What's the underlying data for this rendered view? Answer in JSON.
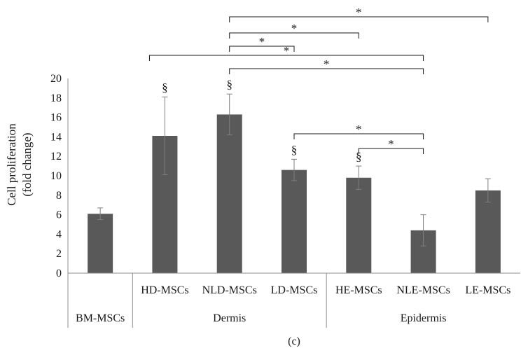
{
  "chart_data": {
    "type": "bar",
    "ylabel": "Cell proliferation (fold change)",
    "ylabel_lines": [
      "Cell proliferation",
      "(fold change)"
    ],
    "ylim": [
      0,
      20
    ],
    "yticks": [
      0,
      2,
      4,
      6,
      8,
      10,
      12,
      14,
      16,
      18,
      20
    ],
    "grid": false,
    "bar_color": "#595959",
    "categories": [
      "BM-MSCs",
      "HD-MSCs",
      "NLD-MSCs",
      "LD-MSCs",
      "HE-MSCs",
      "NLE-MSCs",
      "LE-MSCs"
    ],
    "values": [
      6.1,
      14.1,
      16.3,
      10.6,
      9.8,
      4.4,
      8.5
    ],
    "errors": [
      0.6,
      4.0,
      2.1,
      1.1,
      1.2,
      1.6,
      1.2
    ],
    "significance_marks": [
      "",
      "§",
      "§",
      "§",
      "§",
      "",
      ""
    ],
    "groups": [
      {
        "label": "BM-MSCs",
        "categories": [
          "BM-MSCs"
        ]
      },
      {
        "label": "Dermis",
        "categories": [
          "HD-MSCs",
          "NLD-MSCs",
          "LD-MSCs"
        ]
      },
      {
        "label": "Epidermis",
        "categories": [
          "HE-MSCs",
          "NLE-MSCs",
          "LE-MSCs"
        ]
      }
    ],
    "comparisons": [
      {
        "from": "NLD-MSCs",
        "to": "LE-MSCs",
        "label": "*"
      },
      {
        "from": "NLD-MSCs",
        "to": "HE-MSCs",
        "label": "*"
      },
      {
        "from": "NLD-MSCs",
        "to": "LD-MSCs",
        "label": "*"
      },
      {
        "from": "HD-MSCs",
        "to": "NLE-MSCs",
        "label": "*"
      },
      {
        "from": "NLD-MSCs",
        "to": "NLE-MSCs",
        "label": "*"
      },
      {
        "from": "LD-MSCs",
        "to": "NLE-MSCs",
        "label": "*"
      },
      {
        "from": "HE-MSCs",
        "to": "NLE-MSCs",
        "label": "*"
      }
    ],
    "panel_label": "(c)"
  }
}
